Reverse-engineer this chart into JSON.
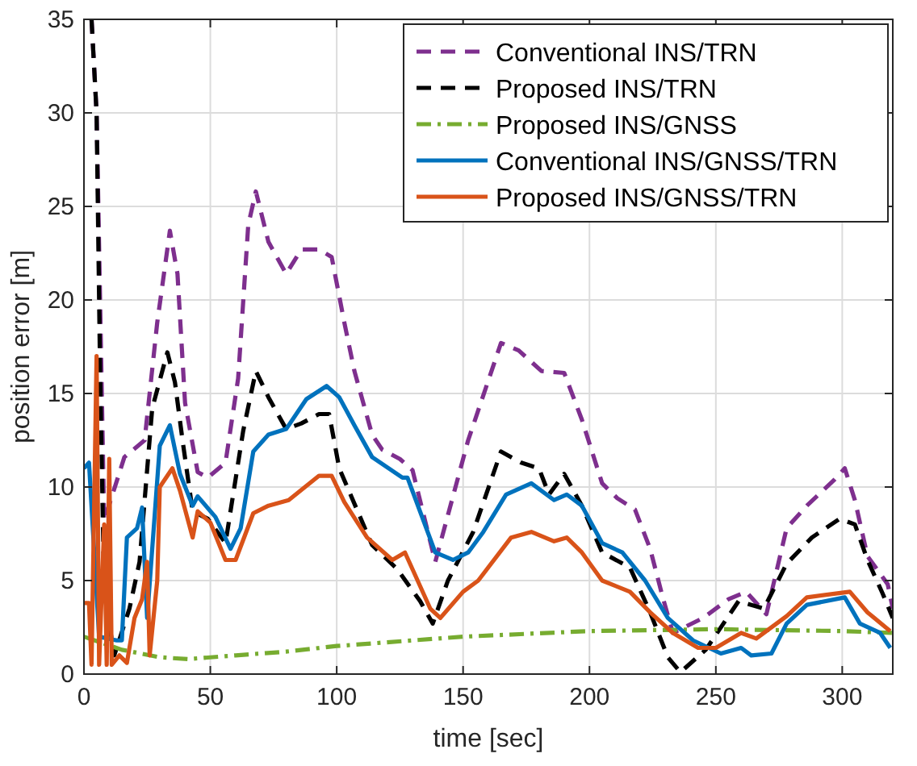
{
  "chart_data": {
    "type": "line",
    "xlabel": "time [sec]",
    "ylabel": "position error [m]",
    "xlim": [
      0,
      320
    ],
    "xticks": [
      0,
      50,
      100,
      150,
      200,
      250,
      300
    ],
    "ylim": [
      0,
      35
    ],
    "yticks": [
      0,
      5,
      10,
      15,
      20,
      25,
      30,
      35
    ],
    "grid": true,
    "legend": "top right",
    "series": [
      {
        "name": "Conventional INS/TRN",
        "color": "#7e2f8e",
        "line_style": "dashed",
        "x": [
          3,
          5,
          8,
          16,
          24,
          29,
          34,
          37,
          40,
          45,
          49,
          56,
          61,
          65,
          68,
          73,
          80,
          86,
          93,
          98,
          103,
          107,
          114,
          118,
          125,
          130,
          139,
          152,
          165,
          172,
          181,
          190,
          197,
          205,
          211,
          218,
          224,
          229,
          233,
          245,
          255,
          262,
          270,
          278,
          286,
          297,
          301,
          305,
          310,
          318,
          320
        ],
        "values": [
          35,
          30,
          8.2,
          11.6,
          12.5,
          18.8,
          23.7,
          21.4,
          14.5,
          10.8,
          10.5,
          11.3,
          15.8,
          24,
          25.8,
          23.1,
          21.4,
          22.7,
          22.7,
          22.3,
          18.8,
          16.2,
          12.8,
          12,
          11.5,
          10.9,
          6,
          12.5,
          17.7,
          17.3,
          16.2,
          16.1,
          13.6,
          10.2,
          9.4,
          8.8,
          6.7,
          4.1,
          2.2,
          3,
          4,
          4.4,
          3.2,
          7.8,
          9,
          10.4,
          11,
          9.3,
          6.3,
          4.8,
          3.5
        ]
      },
      {
        "name": "Proposed INS/TRN",
        "color": "#000000",
        "line_style": "dashed",
        "x": [
          3,
          5,
          6.4,
          8,
          12,
          18,
          22,
          27,
          33,
          36,
          39,
          43,
          49,
          56,
          63,
          68,
          73,
          80,
          86,
          93,
          97,
          101,
          114,
          124,
          133,
          138,
          144,
          154,
          165,
          173,
          180,
          184,
          190,
          197,
          205,
          216,
          224,
          231,
          236,
          246,
          259,
          269,
          278,
          288,
          299,
          305,
          310,
          316,
          320
        ],
        "values": [
          35,
          30,
          16,
          4.4,
          1,
          3.5,
          6,
          14.2,
          17.2,
          15.6,
          12.5,
          8.7,
          8.3,
          7,
          13,
          16.2,
          14.8,
          13.1,
          13.4,
          13.9,
          13.9,
          11,
          6.9,
          5.6,
          3.9,
          2.7,
          5,
          7.6,
          11.9,
          11.3,
          11,
          9.6,
          10.7,
          9,
          6.5,
          5.7,
          3.3,
          0.9,
          0.1,
          1.3,
          3.9,
          3.5,
          5.9,
          7.3,
          8.3,
          8,
          6.1,
          4.3,
          3
        ]
      },
      {
        "name": "Proposed INS/GNSS",
        "color": "#77ac30",
        "line_style": "dashdot",
        "x": [
          0,
          15,
          30,
          41,
          60,
          80,
          100,
          150,
          200,
          250,
          300,
          320
        ],
        "values": [
          2,
          1.3,
          0.9,
          0.8,
          1,
          1.2,
          1.5,
          2,
          2.3,
          2.4,
          2.3,
          2.2
        ]
      },
      {
        "name": "Conventional INS/GNSS/TRN",
        "color": "#0072bd",
        "line_style": "solid",
        "x": [
          0,
          2,
          6,
          13,
          15,
          17,
          21,
          23,
          25,
          30,
          34,
          38,
          43,
          45,
          52,
          58,
          62,
          67,
          73,
          80,
          88,
          96,
          101,
          107,
          114,
          126,
          128,
          139,
          146,
          152,
          158,
          167,
          177,
          186,
          191,
          197,
          205,
          213,
          222,
          231,
          241,
          252,
          260,
          264,
          272,
          278,
          286,
          301,
          307,
          315,
          319
        ],
        "values": [
          11,
          11.3,
          2,
          1.8,
          1.8,
          7.3,
          7.8,
          8.9,
          3,
          12.2,
          13.3,
          10.7,
          9,
          9.5,
          8.4,
          6.7,
          7.8,
          11.9,
          12.8,
          13.1,
          14.7,
          15.4,
          14.8,
          13.3,
          11.6,
          10.5,
          10.5,
          6.5,
          6.1,
          6.5,
          7.6,
          9.6,
          10.2,
          9.3,
          9.6,
          9,
          7,
          6.5,
          5,
          3,
          1.8,
          1.1,
          1.4,
          1,
          1.1,
          2.7,
          3.7,
          4.1,
          2.7,
          2.2,
          1.4
        ]
      },
      {
        "name": "Proposed INS/GNSS/TRN",
        "color": "#d95319",
        "line_style": "solid",
        "x": [
          0,
          2,
          3,
          5,
          6,
          8,
          9,
          10,
          11,
          14,
          17,
          20,
          23,
          25,
          26,
          29,
          30,
          35,
          38,
          43,
          45,
          50,
          56,
          60,
          67,
          73,
          81,
          93,
          98,
          103,
          112,
          122,
          127,
          137,
          141,
          150,
          156,
          169,
          177,
          186,
          191,
          197,
          205,
          216,
          224,
          233,
          243,
          250,
          260,
          266,
          278,
          286,
          303,
          310,
          319
        ],
        "values": [
          3.8,
          3.8,
          0.5,
          17,
          0.5,
          8,
          0.5,
          11.5,
          0.5,
          1,
          0.6,
          3,
          4,
          6,
          1,
          5,
          10,
          11,
          9.8,
          7.3,
          8.7,
          8.1,
          6.1,
          6.1,
          8.6,
          9,
          9.3,
          10.6,
          10.6,
          9.2,
          7.3,
          6.1,
          6.5,
          3.5,
          3,
          4.4,
          5,
          7.3,
          7.6,
          7.1,
          7.3,
          6.5,
          5,
          4.4,
          3.3,
          2.2,
          1.4,
          1.4,
          2.2,
          1.9,
          3.1,
          4.1,
          4.4,
          3.3,
          2.3
        ]
      }
    ]
  }
}
